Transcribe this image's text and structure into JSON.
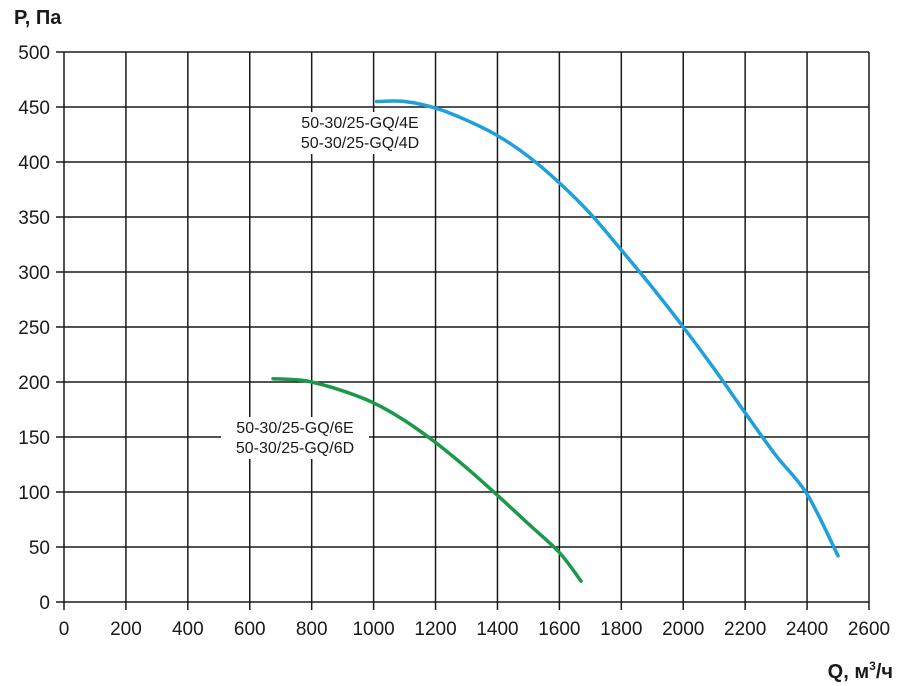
{
  "chart_data": {
    "type": "line",
    "title": "",
    "xlabel": "Q, м",
    "xlabel_sup": "3",
    "xlabel_suffix": "/ч",
    "ylabel": "P, Па",
    "xlim": [
      0,
      2600
    ],
    "ylim": [
      0,
      500
    ],
    "xticks": [
      0,
      200,
      400,
      600,
      800,
      1000,
      1200,
      1400,
      1600,
      1800,
      2000,
      2200,
      2400,
      2600
    ],
    "yticks": [
      0,
      50,
      100,
      150,
      200,
      250,
      300,
      350,
      400,
      450,
      500
    ],
    "grid": true,
    "series": [
      {
        "name": "50-30/25-GQ/4E, 50-30/25-GQ/4D",
        "labels": [
          "50-30/25-GQ/4E",
          "50-30/25-GQ/4D"
        ],
        "color": "#1ea0dc",
        "x": [
          1010,
          1100,
          1200,
          1300,
          1400,
          1500,
          1600,
          1700,
          1800,
          1900,
          2000,
          2100,
          2200,
          2300,
          2400,
          2500
        ],
        "y": [
          455,
          455,
          449,
          438,
          424,
          405,
          381,
          353,
          320,
          286,
          250,
          212,
          172,
          133,
          98,
          42
        ]
      },
      {
        "name": "50-30/25-GQ/6E, 50-30/25-GQ/6D",
        "labels": [
          "50-30/25-GQ/6E",
          "50-30/25-GQ/6D"
        ],
        "color": "#1a9a48",
        "x": [
          675,
          750,
          800,
          900,
          1000,
          1100,
          1200,
          1300,
          1400,
          1500,
          1600,
          1670
        ],
        "y": [
          203,
          202,
          200,
          192,
          181,
          165,
          145,
          122,
          97,
          71,
          45,
          19
        ]
      }
    ]
  }
}
